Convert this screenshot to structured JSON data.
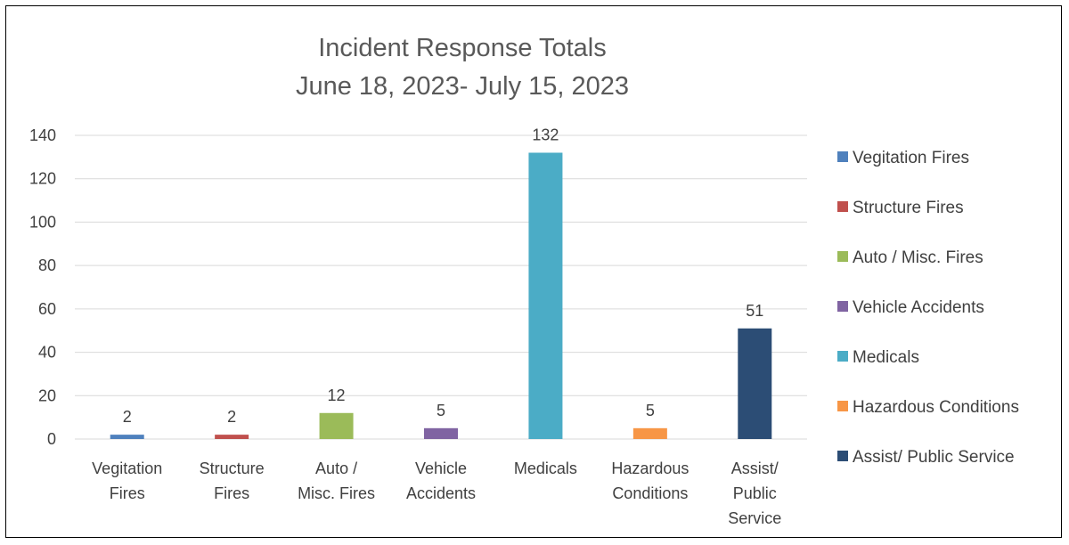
{
  "chart_data": {
    "type": "bar",
    "title": "Incident Response Totals",
    "subtitle": "June 18, 2023- July 15, 2023",
    "xlabel": "",
    "ylabel": "",
    "ylim": [
      0,
      140
    ],
    "yticks": [
      0,
      20,
      40,
      60,
      80,
      100,
      120,
      140
    ],
    "grid": true,
    "legend_position": "right",
    "categories": [
      "Vegitation Fires",
      "Structure Fires",
      "Auto / Misc.  Fires",
      "Vehicle Accidents",
      "Medicals",
      "Hazardous Conditions",
      "Assist/ Public Service"
    ],
    "category_tick_lines": [
      [
        "Vegitation",
        "Fires"
      ],
      [
        "Structure",
        "Fires"
      ],
      [
        "Auto /",
        "Misc.  Fires"
      ],
      [
        "Vehicle",
        "Accidents"
      ],
      [
        "Medicals"
      ],
      [
        "Hazardous",
        "Conditions"
      ],
      [
        "Assist/",
        "Public",
        "Service"
      ]
    ],
    "values": [
      2,
      2,
      12,
      5,
      132,
      5,
      51
    ],
    "data_labels": [
      "2",
      "2",
      "12",
      "5",
      "132",
      "5",
      "51"
    ],
    "colors": [
      "#4f81bd",
      "#c0504d",
      "#9bbb59",
      "#8064a2",
      "#4bacc6",
      "#f79646",
      "#2c4d75"
    ],
    "legend": [
      "Vegitation Fires",
      "Structure Fires",
      "Auto / Misc.  Fires",
      "Vehicle Accidents",
      "Medicals",
      "Hazardous Conditions",
      "Assist/ Public Service"
    ]
  }
}
